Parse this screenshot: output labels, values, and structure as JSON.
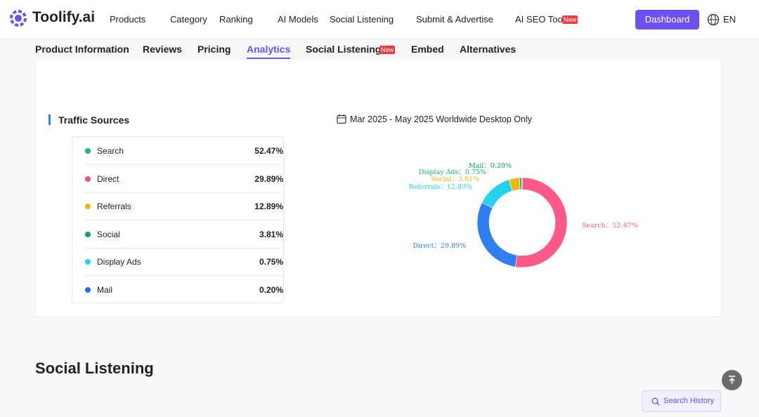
{
  "header": {
    "logo": "Toolify.ai",
    "nav": [
      "Products",
      "Category",
      "Ranking",
      "AI Models",
      "Social Listening",
      "Submit & Advertise",
      "AI SEO Tool"
    ],
    "badge": "New",
    "dashboard": "Dashboard",
    "language": "EN"
  },
  "tabs": {
    "items": [
      "Product Information",
      "Reviews",
      "Pricing",
      "Analytics",
      "Social Listening",
      "Embed",
      "Alternatives"
    ],
    "badge": "New",
    "active": 3
  },
  "traffic": {
    "title": "Traffic Sources",
    "period": "Mar 2025 - May 2025 Worldwide Desktop Only",
    "legend_colors": [
      "#10b981",
      "#f0507e",
      "#f5b50f",
      "#0f9d78",
      "#22d3ee",
      "#1f6fe5"
    ]
  },
  "chart_data": {
    "type": "pie",
    "categories": [
      "Search",
      "Direct",
      "Referrals",
      "Social",
      "Display Ads",
      "Mail"
    ],
    "values": [
      52.47,
      29.89,
      12.89,
      3.81,
      0.75,
      0.2
    ],
    "value_labels": [
      "52.47%",
      "29.89%",
      "12.89%",
      "3.81%",
      "0.75%",
      "0.20%"
    ],
    "data_labels": [
      "Search：52.47%",
      "Direct：29.89%",
      "Referrals：12.89%",
      "Social：3.81%",
      "Display Ads：0.75%",
      "Mail：0.20%"
    ],
    "colors": [
      "#ff5a87",
      "#2f7ff0",
      "#22d3ee",
      "#f5b50f",
      "#10b981",
      "#0f9d78"
    ]
  },
  "social": {
    "title": "Social Listening",
    "search_history": "Search History"
  }
}
